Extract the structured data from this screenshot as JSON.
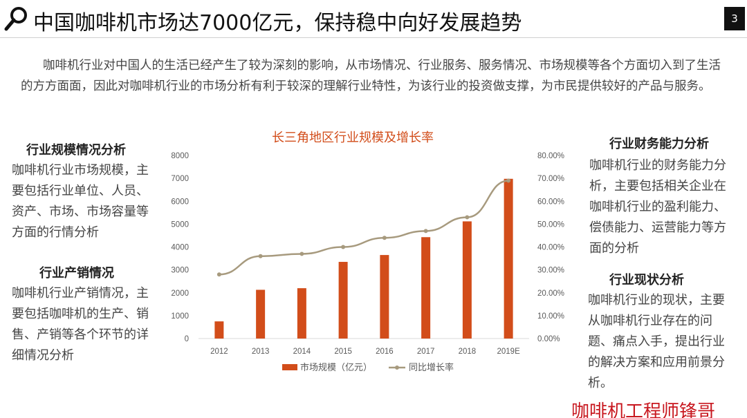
{
  "header": {
    "title": "中国咖啡机市场达7000亿元，保持稳中向好发展趋势",
    "page_number": "3",
    "icon": "search-icon"
  },
  "intro": "咖啡机行业对中国人的生活已经产生了较为深刻的影响，从市场情况、行业服务、服务情况、市场规模等各个方面切入到了生活的方方面面，因此对咖啡机行业的市场分析有利于较深的理解行业特性，为该行业的投资做支撑，为市民提供较好的产品与服务。",
  "left": {
    "scale_heading": "行业规模情况分析",
    "scale_text": "咖啡机行业市场规模，主要包括行业单位、人员、资产、市场、市场容量等方面的行情分析",
    "production_heading": "行业产销情况",
    "production_text": "咖啡机行业产销情况，主要包括咖啡机的生产、销售、产销等各个环节的详细情况分析"
  },
  "right": {
    "finance_heading": "行业财务能力分析",
    "finance_text": "咖啡机行业的财务能力分析，主要包括相关企业在咖啡机行业的盈利能力、偿债能力、运营能力等方面的分析",
    "status_heading": "行业现状分析",
    "status_text": "咖啡机行业的现状，主要从咖啡机行业存在的问题、痛点入手，提出行业的解决方案和应用前景分析。"
  },
  "signature": "咖啡机工程师锋哥",
  "chart_data": {
    "type": "bar",
    "title": "长三角地区行业规模及增长率",
    "categories": [
      "2012",
      "2013",
      "2014",
      "2015",
      "2016",
      "2017",
      "2018",
      "2019E"
    ],
    "series": [
      {
        "name": "市场规模（亿元）",
        "type": "bar",
        "axis": "left",
        "color": "#d24d1a",
        "values": [
          750,
          2130,
          2200,
          3350,
          3650,
          4430,
          5120,
          6980
        ]
      },
      {
        "name": "同比增长率",
        "type": "line",
        "axis": "right",
        "color": "#a79a7e",
        "values": [
          0.28,
          0.36,
          0.37,
          0.4,
          0.44,
          0.47,
          0.53,
          0.69
        ]
      }
    ],
    "y_left": {
      "min": 0,
      "max": 8000,
      "ticks": [
        "0",
        "1000",
        "2000",
        "3000",
        "4000",
        "5000",
        "6000",
        "7000",
        "8000"
      ]
    },
    "y_right": {
      "min": 0,
      "max": 0.8,
      "ticks": [
        "0.00%",
        "10.00%",
        "20.00%",
        "30.00%",
        "40.00%",
        "50.00%",
        "60.00%",
        "70.00%",
        "80.00%"
      ]
    },
    "grid": false,
    "legend": "bottom"
  }
}
